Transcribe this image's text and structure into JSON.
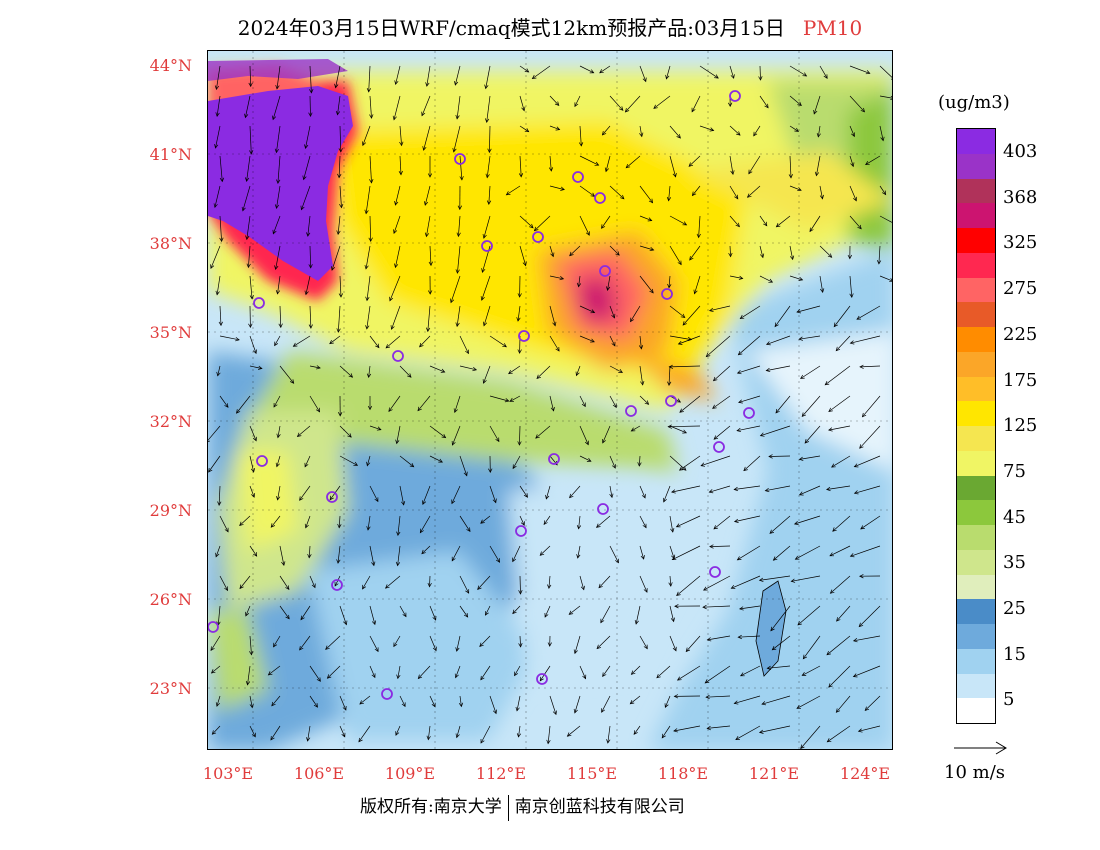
{
  "header": {
    "title": "2024年03月15日WRF/cmaq模式12km预报产品:03月15日",
    "pollutant": "PM10",
    "pollutant_color": "#e03c3c"
  },
  "map": {
    "lat_labels": [
      "44°N",
      "41°N",
      "38°N",
      "35°N",
      "32°N",
      "29°N",
      "26°N",
      "23°N"
    ],
    "lon_labels": [
      "103°E",
      "106°E",
      "109°E",
      "112°E",
      "115°E",
      "118°E",
      "121°E",
      "124°E"
    ],
    "label_color": "#e03c3c",
    "station_marker_color": "#8a2be2"
  },
  "colorbar": {
    "unit": "(ug/m3)",
    "labels": [
      "403",
      "368",
      "325",
      "275",
      "225",
      "175",
      "125",
      "75",
      "45",
      "35",
      "25",
      "15",
      "5"
    ],
    "colors": [
      "#8b2be2",
      "#9a33c8",
      "#b0325a",
      "#cc1470",
      "#ff0000",
      "#ff2850",
      "#ff6464",
      "#e85a28",
      "#ff8c00",
      "#fba628",
      "#ffbe28",
      "#ffe600",
      "#f5e650",
      "#f0f564",
      "#6aa832",
      "#8cc83c",
      "#b9dc6e",
      "#cfe68c",
      "#e0eebc",
      "#4a8cc8",
      "#6eaadc",
      "#a0d2f0",
      "#c8e6f8",
      "#ffffff"
    ]
  },
  "wind_reference": {
    "label": "10 m/s"
  },
  "footer": {
    "copyright": "版权所有:南京大学",
    "company": "南京创蓝科技有限公司"
  }
}
